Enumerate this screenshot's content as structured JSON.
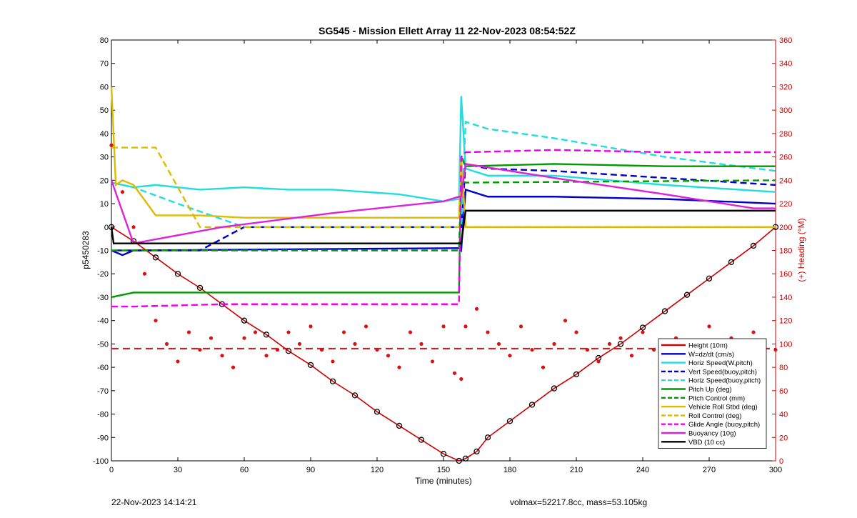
{
  "chart_data": {
    "type": "line",
    "title": "SG545 - Mission Ellett Array 11 22-Nov-2023 08:54:52Z",
    "xlabel": "Time (minutes)",
    "ylabel_left": "p5450283",
    "ylabel_right": "(+) Heading (°M)",
    "xlim": [
      0,
      300
    ],
    "ylim_left": [
      -100,
      80
    ],
    "ylim_right": [
      0,
      360
    ],
    "xticks": [
      "0",
      "30",
      "60",
      "90",
      "120",
      "150",
      "180",
      "210",
      "240",
      "270",
      "300"
    ],
    "yticks_left": [
      "80",
      "70",
      "60",
      "50",
      "40",
      "30",
      "20",
      "10",
      "0",
      "-10",
      "-20",
      "-30",
      "-40",
      "-50",
      "-60",
      "-70",
      "-80",
      "-90",
      "-100"
    ],
    "yticks_right": [
      "360",
      "340",
      "320",
      "300",
      "280",
      "260",
      "240",
      "220",
      "200",
      "180",
      "160",
      "140",
      "120",
      "100",
      "80",
      "60",
      "40",
      "20",
      "0"
    ],
    "grid": false,
    "legend_position": "lower-right",
    "series": [
      {
        "name": "Height (10m)",
        "color": "#cc0000",
        "style": "solid-markers",
        "x": [
          0,
          10,
          20,
          30,
          40,
          50,
          60,
          70,
          80,
          90,
          100,
          110,
          120,
          130,
          140,
          150,
          157,
          160,
          165,
          170,
          180,
          190,
          200,
          210,
          220,
          230,
          240,
          250,
          260,
          270,
          280,
          290,
          300
        ],
        "y": [
          0,
          -6,
          -13,
          -20,
          -26,
          -33,
          -40,
          -46,
          -53,
          -59,
          -66,
          -72,
          -79,
          -85,
          -91,
          -97,
          -100,
          -99,
          -96,
          -90,
          -83,
          -76,
          -69,
          -63,
          -56,
          -50,
          -43,
          -36,
          -29,
          -22,
          -15,
          -8,
          0
        ]
      },
      {
        "name": "W=dz/dt (cm/s)",
        "color": "#0000cc",
        "style": "solid",
        "x": [
          0,
          5,
          10,
          157,
          158,
          160,
          170,
          200,
          250,
          300
        ],
        "y": [
          -10,
          -12,
          -10,
          -9,
          -10,
          16,
          13,
          13,
          12,
          10
        ]
      },
      {
        "name": "Horiz Speed(W,pitch)",
        "color": "#22dddd",
        "style": "solid",
        "x": [
          0,
          10,
          20,
          40,
          60,
          80,
          100,
          130,
          150,
          157,
          158,
          160,
          170,
          200,
          250,
          300
        ],
        "y": [
          19,
          17,
          18,
          16,
          17,
          16,
          16,
          14,
          11,
          12,
          56,
          25,
          22,
          22,
          18,
          15
        ]
      },
      {
        "name": "Vert Speed(buoy,pitch)",
        "color": "#0000cc",
        "style": "dashed",
        "x": [
          2,
          40,
          60,
          157,
          158,
          160,
          170,
          200,
          250,
          300
        ],
        "y": [
          -10,
          -10,
          0,
          0,
          0,
          27,
          25,
          24,
          21,
          18
        ]
      },
      {
        "name": "Horiz Speed(buoy,pitch)",
        "color": "#22dddd",
        "style": "dashed",
        "x": [
          0,
          10,
          30,
          60,
          100,
          157,
          158,
          160,
          170,
          200,
          250,
          300
        ],
        "y": [
          19,
          17,
          10,
          0,
          0,
          0,
          0,
          45,
          42,
          38,
          30,
          24
        ]
      },
      {
        "name": "Pitch Up (deg)",
        "color": "#009900",
        "style": "solid",
        "x": [
          0,
          10,
          50,
          100,
          157,
          158,
          160,
          200,
          250,
          300
        ],
        "y": [
          -30,
          -28,
          -28,
          -28,
          -28,
          30,
          26,
          27,
          26,
          26
        ]
      },
      {
        "name": "Pitch Control (mm)",
        "color": "#009900",
        "style": "dashed",
        "x": [
          0,
          157,
          158,
          160,
          300
        ],
        "y": [
          -10,
          -10,
          20,
          19,
          20
        ]
      },
      {
        "name": "Vehicle Roll Stbd (deg)",
        "color": "#ddbb00",
        "style": "solid",
        "x": [
          0,
          2,
          5,
          10,
          20,
          40,
          60,
          80,
          100,
          130,
          150,
          157,
          158,
          160,
          180,
          200,
          230,
          260,
          280,
          300
        ],
        "y": [
          60,
          18,
          20,
          18,
          5,
          5,
          4,
          4,
          4,
          4,
          4,
          4,
          30,
          0,
          0,
          0,
          0,
          0,
          0,
          0
        ]
      },
      {
        "name": "Roll Control (deg)",
        "color": "#ddbb00",
        "style": "dashed",
        "x": [
          0,
          10,
          20,
          40,
          60,
          90,
          120,
          150,
          157,
          158,
          160,
          200,
          250,
          300
        ],
        "y": [
          34,
          34,
          34,
          0,
          0,
          0,
          0,
          0,
          0,
          0,
          0,
          0,
          0,
          0
        ]
      },
      {
        "name": "Glide Angle (buoy,pitch)",
        "color": "#ee00ee",
        "style": "dashed",
        "x": [
          0,
          10,
          50,
          100,
          150,
          157,
          158,
          160,
          200,
          250,
          300
        ],
        "y": [
          -34,
          -34,
          -33,
          -33,
          -33,
          -33,
          30,
          32,
          33,
          32,
          32
        ]
      },
      {
        "name": "Buoyancy (10g)",
        "color": "#dd22dd",
        "style": "solid",
        "x": [
          0,
          10,
          50,
          100,
          150,
          157,
          158,
          160,
          200,
          250,
          290,
          300
        ],
        "y": [
          20,
          -7,
          0,
          6,
          11,
          13,
          13,
          27,
          21,
          14,
          8,
          8
        ]
      },
      {
        "name": "VBD (10 cc)",
        "color": "#000000",
        "style": "solid",
        "x": [
          0,
          1,
          2,
          157,
          158,
          160,
          300
        ],
        "y": [
          0,
          -7,
          -7,
          -7,
          -7,
          7,
          7
        ]
      }
    ],
    "heading": {
      "axis": "right",
      "color": "#dd1111",
      "reference_line": 96,
      "x": [
        0,
        5,
        10,
        15,
        20,
        25,
        30,
        35,
        40,
        45,
        50,
        55,
        60,
        65,
        70,
        75,
        80,
        85,
        90,
        95,
        100,
        105,
        110,
        115,
        120,
        125,
        130,
        135,
        140,
        145,
        150,
        155,
        158,
        160,
        165,
        170,
        175,
        180,
        185,
        190,
        195,
        200,
        205,
        210,
        215,
        220,
        225,
        230,
        235,
        240,
        245,
        250,
        255,
        260,
        265,
        270,
        275,
        280,
        285,
        290,
        295,
        300
      ],
      "y": [
        270,
        230,
        200,
        160,
        120,
        100,
        85,
        110,
        95,
        105,
        90,
        80,
        105,
        110,
        90,
        95,
        110,
        100,
        115,
        95,
        85,
        110,
        100,
        115,
        95,
        90,
        80,
        110,
        100,
        85,
        115,
        75,
        70,
        115,
        130,
        110,
        100,
        90,
        115,
        95,
        80,
        100,
        120,
        110,
        95,
        85,
        100,
        105,
        90,
        110,
        95,
        100,
        105,
        90,
        100,
        115,
        95,
        105,
        85,
        110,
        100,
        95
      ]
    },
    "legend": [
      "Height (10m)",
      "W=dz/dt (cm/s)",
      "Horiz Speed(W,pitch)",
      "Vert Speed(buoy,pitch)",
      "Horiz Speed(buoy,pitch)",
      "Pitch Up (deg)",
      "Pitch Control (mm)",
      "Vehicle Roll Stbd (deg)",
      "Roll Control (deg)",
      "Glide Angle (buoy,pitch)",
      "Buoyancy (10g)",
      "VBD (10 cc)"
    ]
  },
  "footer": {
    "date": "22-Nov-2023 14:14:21",
    "info": "volmax=52217.8cc, mass=53.105kg"
  }
}
